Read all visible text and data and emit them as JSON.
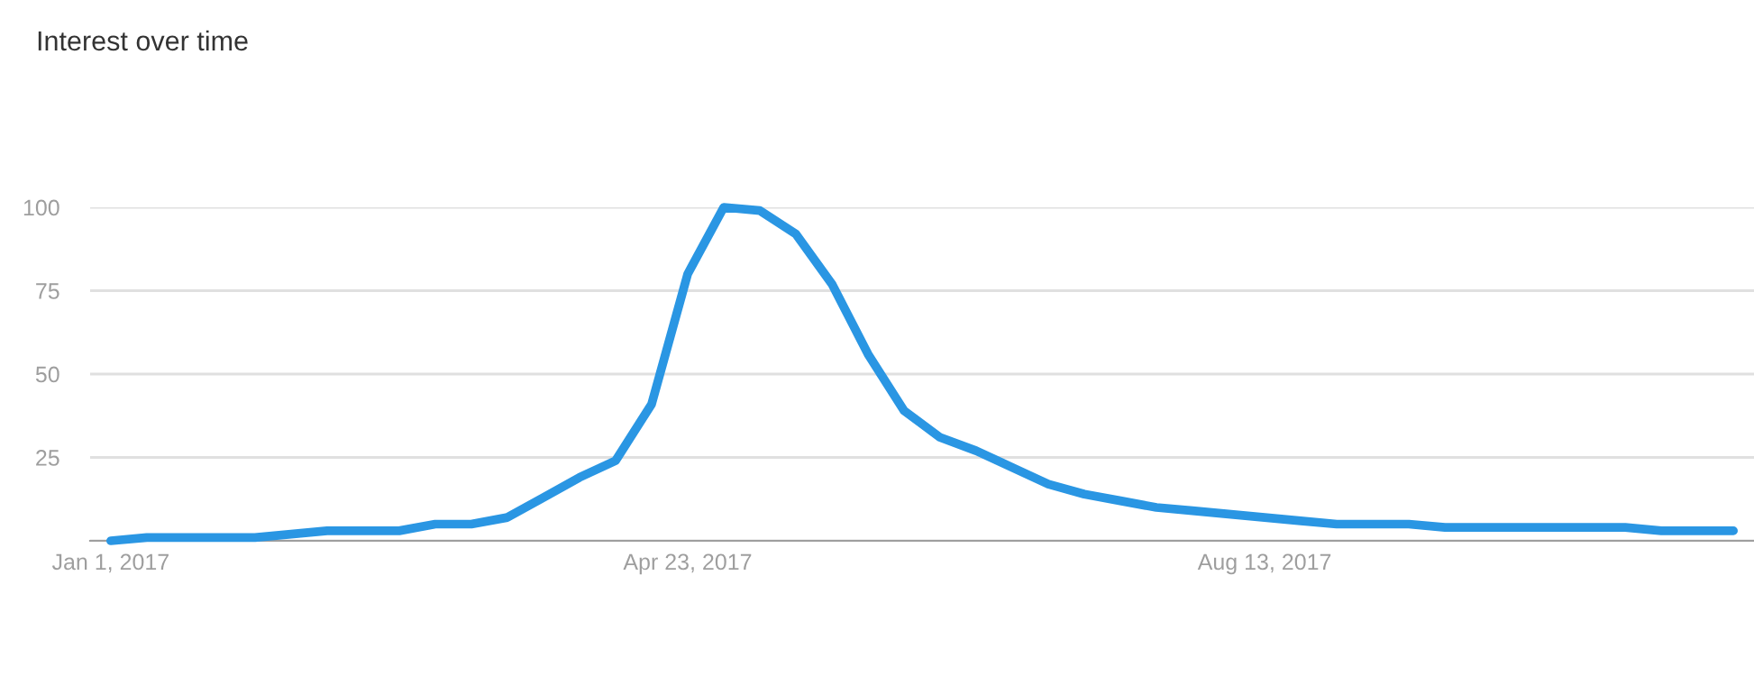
{
  "chart_data": {
    "type": "line",
    "title": "Interest over time",
    "x": [
      "2017-01-01",
      "2017-01-08",
      "2017-01-15",
      "2017-01-22",
      "2017-01-29",
      "2017-02-05",
      "2017-02-12",
      "2017-02-19",
      "2017-02-26",
      "2017-03-05",
      "2017-03-12",
      "2017-03-19",
      "2017-03-26",
      "2017-04-02",
      "2017-04-09",
      "2017-04-16",
      "2017-04-23",
      "2017-04-30",
      "2017-05-07",
      "2017-05-14",
      "2017-05-21",
      "2017-05-28",
      "2017-06-04",
      "2017-06-11",
      "2017-06-18",
      "2017-06-25",
      "2017-07-02",
      "2017-07-09",
      "2017-07-16",
      "2017-07-23",
      "2017-07-30",
      "2017-08-06",
      "2017-08-13",
      "2017-08-20",
      "2017-08-27",
      "2017-09-03",
      "2017-09-10",
      "2017-09-17",
      "2017-09-24",
      "2017-10-01",
      "2017-10-08",
      "2017-10-15",
      "2017-10-22",
      "2017-10-29",
      "2017-11-05",
      "2017-11-12"
    ],
    "series": [
      {
        "color": "#2a96e3",
        "values": [
          0,
          1,
          1,
          1,
          1,
          2,
          3,
          3,
          3,
          5,
          5,
          7,
          13,
          19,
          24,
          41,
          80,
          100,
          99,
          92,
          77,
          56,
          39,
          31,
          27,
          22,
          17,
          14,
          12,
          10,
          9,
          8,
          7,
          6,
          5,
          5,
          5,
          4,
          4,
          4,
          4,
          4,
          4,
          3,
          3,
          3
        ]
      }
    ],
    "xlim": [
      "2016-12-28",
      "2017-11-16"
    ],
    "xticks": [
      {
        "value": "2017-01-01",
        "label": "Jan 1, 2017"
      },
      {
        "value": "2017-04-23",
        "label": "Apr 23, 2017"
      },
      {
        "value": "2017-08-13",
        "label": "Aug 13, 2017"
      }
    ],
    "ylim": [
      0,
      100
    ],
    "yticks": [
      {
        "value": 0,
        "label": null
      },
      25,
      50,
      75,
      100
    ],
    "grid": "y",
    "marker": "none",
    "line_style": "solid"
  }
}
